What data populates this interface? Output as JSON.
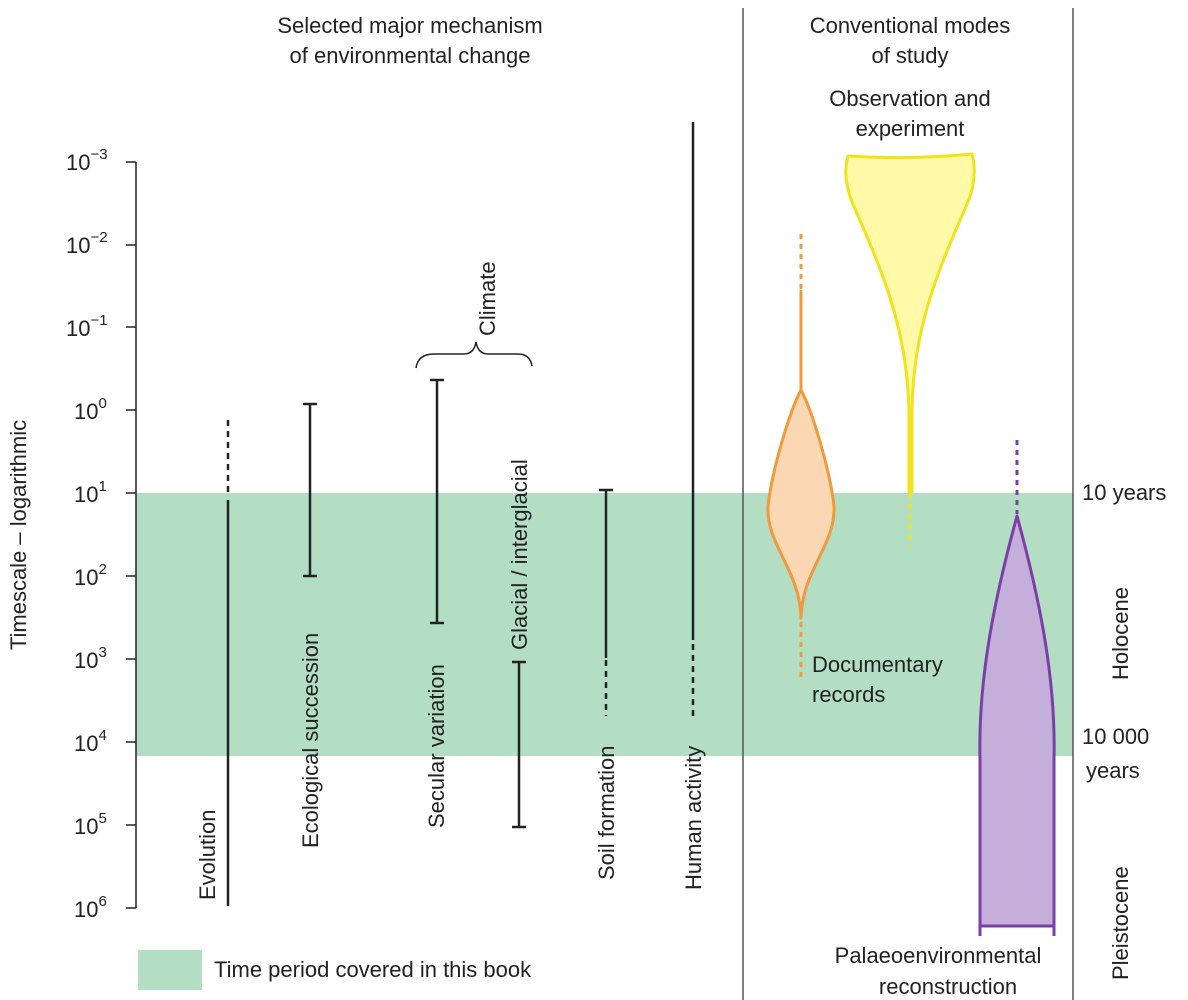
{
  "header": {
    "left_line1": "Selected major mechanism",
    "left_line2": "of environmental change",
    "right_line1": "Conventional modes",
    "right_line2": "of study"
  },
  "axis": {
    "label": "Timescale – logarithmic",
    "ticks": [
      {
        "base": "10",
        "exp": "−3"
      },
      {
        "base": "10",
        "exp": "−2"
      },
      {
        "base": "10",
        "exp": "−1"
      },
      {
        "base": "10",
        "exp": "0"
      },
      {
        "base": "10",
        "exp": "1"
      },
      {
        "base": "10",
        "exp": "2"
      },
      {
        "base": "10",
        "exp": "3"
      },
      {
        "base": "10",
        "exp": "4"
      },
      {
        "base": "10",
        "exp": "5"
      },
      {
        "base": "10",
        "exp": "6"
      }
    ]
  },
  "mechanisms": {
    "evolution": "Evolution",
    "ecological_succession": "Ecological succession",
    "secular_variation": "Secular variation",
    "climate": "Climate",
    "glacial_interglacial": "Glacial / interglacial",
    "soil_formation": "Soil formation",
    "human_activity": "Human activity"
  },
  "modes": {
    "observation_line1": "Observation and",
    "observation_line2": "experiment",
    "documentary_line1": "Documentary",
    "documentary_line2": "records",
    "palaeo_line1": "Palaeoenvironmental",
    "palaeo_line2": "reconstruction"
  },
  "right_labels": {
    "ten_years": "10 years",
    "holocene": "Holocene",
    "ten_thousand_line1": "10 000",
    "ten_thousand_line2": "years",
    "pleistocene": "Pleistocene"
  },
  "legend": {
    "label": "Time period covered in this book"
  },
  "colors": {
    "band": "#b3dec4",
    "observation_fill": "#fff9a8",
    "observation_stroke": "#f2e21b",
    "documentary_fill": "#fcd7b4",
    "documentary_stroke": "#ef9a3c",
    "palaeo_fill": "#c3afd9",
    "palaeo_stroke": "#7b3fa8",
    "ink": "#222222"
  }
}
